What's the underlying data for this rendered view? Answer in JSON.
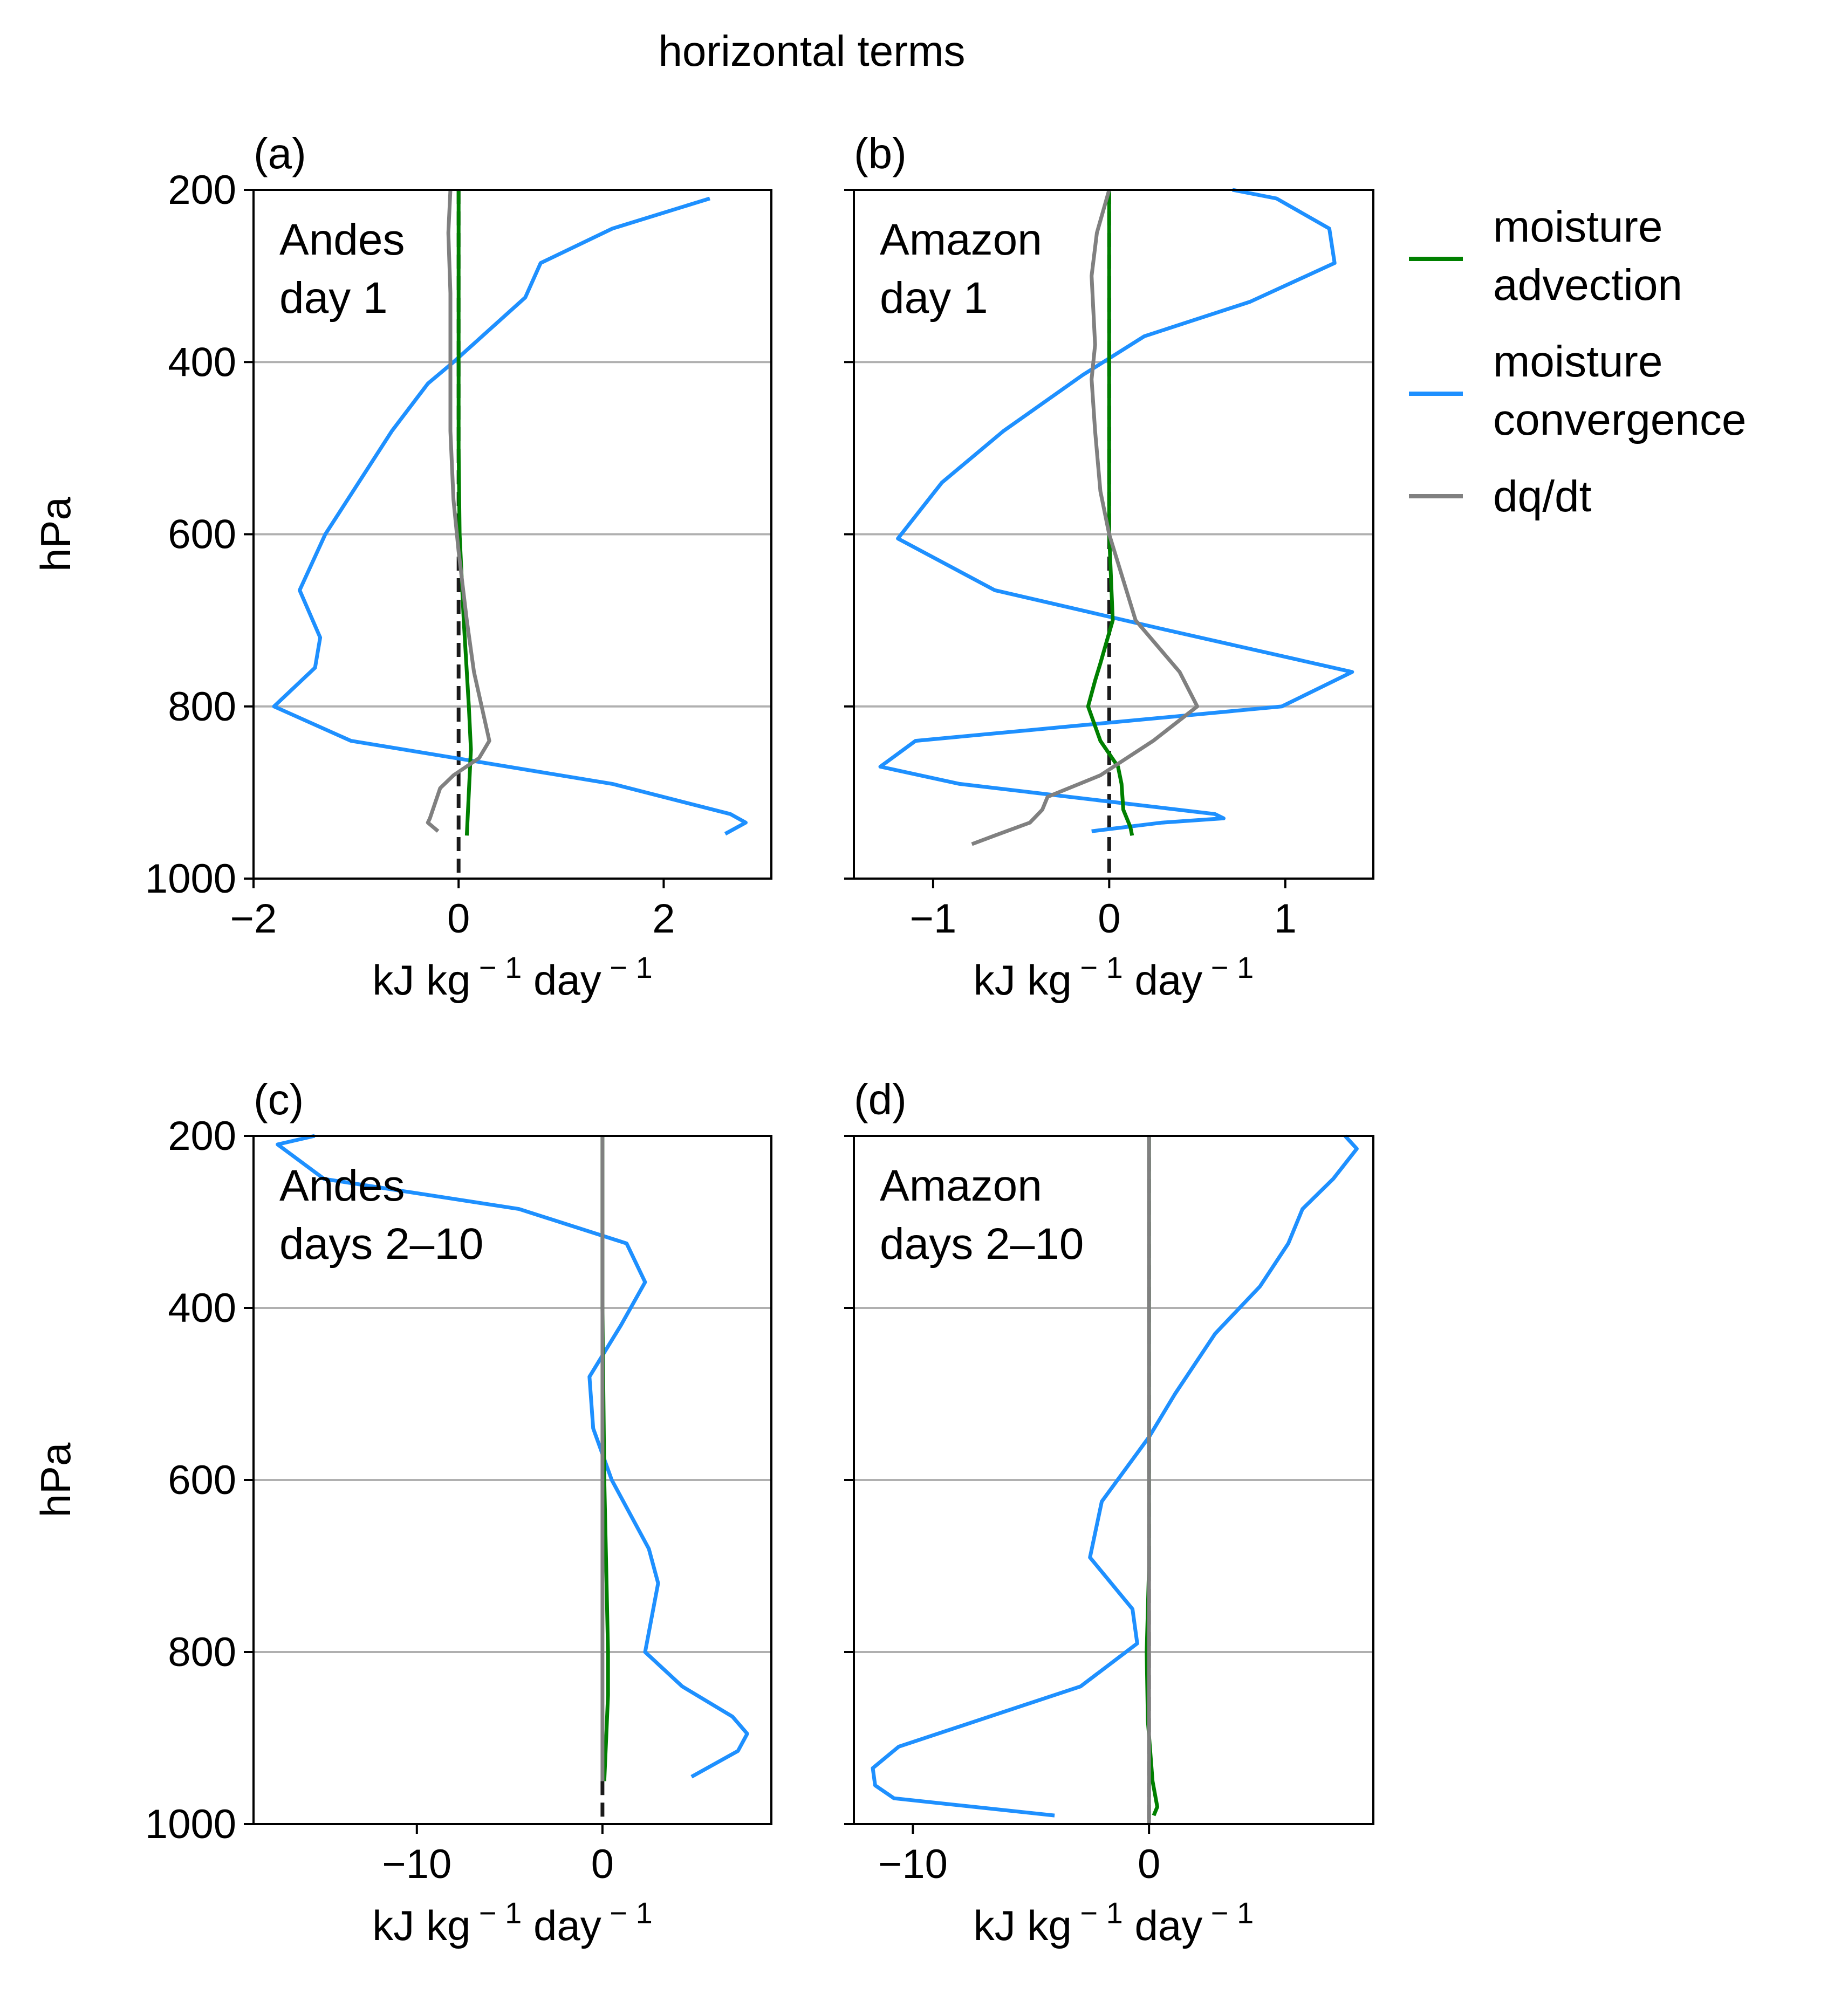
{
  "title": "horizontal terms",
  "colors": {
    "moisture_advection": "#008000",
    "moisture_convergence": "#1e90ff",
    "dq_dt": "#808080",
    "zero_line": "#1a1a1a",
    "grid": "#b0b0b0"
  },
  "legend": {
    "items": [
      {
        "key": "moisture_advection",
        "lines": [
          "moisture",
          "advection"
        ]
      },
      {
        "key": "moisture_convergence",
        "lines": [
          "moisture",
          "convergence"
        ]
      },
      {
        "key": "dq_dt",
        "lines": [
          "dq/dt"
        ]
      }
    ]
  },
  "chart_data": [
    {
      "type": "line",
      "panel": "(a)",
      "annotation": [
        "Andes",
        "day 1"
      ],
      "xlabel": "kJ kg⁻¹ day⁻¹",
      "ylabel": "hPa",
      "xlim": [
        -2.0,
        3.05
      ],
      "ylim": [
        1000,
        200
      ],
      "xticks": [
        -2,
        0,
        2
      ],
      "xtick_labels": [
        "−2",
        "0",
        "2"
      ],
      "yticks": [
        200,
        400,
        600,
        800,
        1000
      ],
      "grid_y": [
        400,
        600,
        800
      ],
      "series": [
        {
          "key": "moisture_convergence",
          "points": [
            [
              2.45,
              210
            ],
            [
              1.5,
              245
            ],
            [
              0.8,
              285
            ],
            [
              0.65,
              325
            ],
            [
              -0.05,
              400
            ],
            [
              -0.3,
              425
            ],
            [
              -0.65,
              480
            ],
            [
              -1.3,
              600
            ],
            [
              -1.55,
              665
            ],
            [
              -1.35,
              720
            ],
            [
              -1.4,
              755
            ],
            [
              -1.8,
              800
            ],
            [
              -1.05,
              840
            ],
            [
              1.5,
              890
            ],
            [
              2.65,
              925
            ],
            [
              2.8,
              935
            ],
            [
              2.6,
              948
            ]
          ]
        },
        {
          "key": "moisture_advection",
          "points": [
            [
              0.0,
              200
            ],
            [
              0.0,
              300
            ],
            [
              0.0,
              400
            ],
            [
              0.0,
              500
            ],
            [
              0.01,
              600
            ],
            [
              0.05,
              700
            ],
            [
              0.1,
              800
            ],
            [
              0.12,
              850
            ],
            [
              0.1,
              900
            ],
            [
              0.08,
              950
            ]
          ]
        },
        {
          "key": "dq_dt",
          "points": [
            [
              -0.08,
              200
            ],
            [
              -0.1,
              250
            ],
            [
              -0.08,
              320
            ],
            [
              -0.08,
              400
            ],
            [
              -0.08,
              480
            ],
            [
              -0.05,
              560
            ],
            [
              0.0,
              620
            ],
            [
              0.08,
              700
            ],
            [
              0.15,
              760
            ],
            [
              0.3,
              840
            ],
            [
              0.2,
              860
            ],
            [
              -0.05,
              880
            ],
            [
              -0.18,
              895
            ],
            [
              -0.28,
              930
            ],
            [
              -0.3,
              935
            ],
            [
              -0.2,
              945
            ]
          ]
        }
      ],
      "zero_line": [
        [
          0,
          200
        ],
        [
          0,
          1000
        ]
      ]
    },
    {
      "type": "line",
      "panel": "(b)",
      "annotation": [
        "Amazon",
        "day 1"
      ],
      "xlabel": "kJ kg⁻¹ day⁻¹",
      "ylabel": "",
      "xlim": [
        -1.45,
        1.5
      ],
      "ylim": [
        1000,
        200
      ],
      "xticks": [
        -1,
        0,
        1
      ],
      "xtick_labels": [
        "−1",
        "0",
        "1"
      ],
      "yticks": [
        200,
        400,
        600,
        800,
        1000
      ],
      "grid_y": [
        400,
        600,
        800
      ],
      "series": [
        {
          "key": "moisture_convergence",
          "points": [
            [
              0.7,
              200
            ],
            [
              0.95,
              210
            ],
            [
              1.25,
              245
            ],
            [
              1.28,
              285
            ],
            [
              0.8,
              330
            ],
            [
              0.2,
              370
            ],
            [
              -0.15,
              415
            ],
            [
              -0.6,
              480
            ],
            [
              -0.95,
              540
            ],
            [
              -1.2,
              605
            ],
            [
              -0.65,
              665
            ],
            [
              0.3,
              710
            ],
            [
              1.38,
              760
            ],
            [
              0.98,
              800
            ],
            [
              -1.1,
              840
            ],
            [
              -1.3,
              870
            ],
            [
              -0.85,
              890
            ],
            [
              0.6,
              925
            ],
            [
              0.65,
              930
            ],
            [
              0.3,
              935
            ],
            [
              -0.1,
              945
            ]
          ]
        },
        {
          "key": "moisture_advection",
          "points": [
            [
              0.0,
              200
            ],
            [
              0.0,
              300
            ],
            [
              0.0,
              400
            ],
            [
              0.0,
              500
            ],
            [
              0.0,
              600
            ],
            [
              0.01,
              650
            ],
            [
              0.02,
              700
            ],
            [
              -0.05,
              750
            ],
            [
              -0.08,
              770
            ],
            [
              -0.12,
              800
            ],
            [
              -0.05,
              840
            ],
            [
              0.05,
              870
            ],
            [
              0.07,
              890
            ],
            [
              0.08,
              920
            ],
            [
              0.12,
              940
            ],
            [
              0.13,
              950
            ]
          ]
        },
        {
          "key": "dq_dt",
          "points": [
            [
              0.0,
              200
            ],
            [
              -0.07,
              250
            ],
            [
              -0.1,
              300
            ],
            [
              -0.08,
              380
            ],
            [
              -0.1,
              420
            ],
            [
              -0.08,
              480
            ],
            [
              -0.05,
              550
            ],
            [
              0.0,
              600
            ],
            [
              0.15,
              700
            ],
            [
              0.4,
              760
            ],
            [
              0.5,
              800
            ],
            [
              0.25,
              840
            ],
            [
              -0.05,
              880
            ],
            [
              -0.35,
              905
            ],
            [
              -0.38,
              920
            ],
            [
              -0.45,
              935
            ],
            [
              -0.65,
              950
            ],
            [
              -0.78,
              960
            ]
          ]
        }
      ],
      "zero_line": [
        [
          0,
          200
        ],
        [
          0,
          1000
        ]
      ]
    },
    {
      "type": "line",
      "panel": "(c)",
      "annotation": [
        "Andes",
        "days 2–10"
      ],
      "xlabel": "kJ kg⁻¹ day⁻¹",
      "ylabel": "hPa",
      "xlim": [
        -18.8,
        9.1
      ],
      "ylim": [
        1000,
        200
      ],
      "xticks": [
        -10,
        0
      ],
      "xtick_labels": [
        "−10",
        "0"
      ],
      "yticks": [
        200,
        400,
        600,
        800,
        1000
      ],
      "grid_y": [
        400,
        600,
        800
      ],
      "series": [
        {
          "key": "moisture_convergence",
          "points": [
            [
              -15.5,
              200
            ],
            [
              -17.5,
              210
            ],
            [
              -15.0,
              250
            ],
            [
              -4.5,
              285
            ],
            [
              1.3,
              325
            ],
            [
              2.3,
              370
            ],
            [
              1.0,
              420
            ],
            [
              -0.7,
              480
            ],
            [
              -0.5,
              540
            ],
            [
              0.5,
              600
            ],
            [
              2.5,
              680
            ],
            [
              3.0,
              720
            ],
            [
              2.3,
              800
            ],
            [
              4.3,
              840
            ],
            [
              7.0,
              875
            ],
            [
              7.8,
              895
            ],
            [
              7.3,
              915
            ],
            [
              4.8,
              945
            ]
          ]
        },
        {
          "key": "moisture_advection",
          "points": [
            [
              0.0,
              200
            ],
            [
              0.0,
              400
            ],
            [
              0.1,
              600
            ],
            [
              0.2,
              700
            ],
            [
              0.3,
              800
            ],
            [
              0.3,
              850
            ],
            [
              0.2,
              900
            ],
            [
              0.1,
              950
            ]
          ]
        },
        {
          "key": "dq_dt",
          "points": [
            [
              0.0,
              200
            ],
            [
              0.0,
              400
            ],
            [
              0.0,
              600
            ],
            [
              0.0,
              800
            ],
            [
              0.0,
              950
            ]
          ]
        }
      ],
      "zero_line": [
        [
          0,
          950
        ],
        [
          0,
          1000
        ]
      ]
    },
    {
      "type": "line",
      "panel": "(d)",
      "annotation": [
        "Amazon",
        "days 2–10"
      ],
      "xlabel": "kJ kg⁻¹ day⁻¹",
      "ylabel": "",
      "xlim": [
        -12.5,
        9.5
      ],
      "ylim": [
        1000,
        200
      ],
      "xticks": [
        -10,
        0
      ],
      "xtick_labels": [
        "−10",
        "0"
      ],
      "yticks": [
        200,
        400,
        600,
        800,
        1000
      ],
      "grid_y": [
        400,
        600,
        800
      ],
      "series": [
        {
          "key": "moisture_convergence",
          "points": [
            [
              8.3,
              200
            ],
            [
              8.8,
              215
            ],
            [
              7.8,
              250
            ],
            [
              6.5,
              285
            ],
            [
              5.9,
              325
            ],
            [
              4.7,
              375
            ],
            [
              2.8,
              430
            ],
            [
              1.1,
              500
            ],
            [
              0.0,
              550
            ],
            [
              -2.0,
              625
            ],
            [
              -2.5,
              690
            ],
            [
              -0.7,
              750
            ],
            [
              -0.5,
              790
            ],
            [
              -2.9,
              840
            ],
            [
              -10.6,
              910
            ],
            [
              -11.7,
              935
            ],
            [
              -11.6,
              955
            ],
            [
              -10.8,
              970
            ],
            [
              -4.0,
              990
            ]
          ]
        },
        {
          "key": "moisture_advection",
          "points": [
            [
              0.0,
              200
            ],
            [
              0.0,
              500
            ],
            [
              0.0,
              700
            ],
            [
              -0.1,
              800
            ],
            [
              -0.05,
              880
            ],
            [
              0.15,
              950
            ],
            [
              0.35,
              980
            ],
            [
              0.2,
              990
            ]
          ]
        },
        {
          "key": "dq_dt",
          "points": [
            [
              0.0,
              200
            ],
            [
              0.0,
              400
            ],
            [
              0.0,
              600
            ],
            [
              0.0,
              800
            ],
            [
              0.0,
              1000
            ]
          ]
        }
      ],
      "zero_line": [
        [
          0,
          200
        ],
        [
          0,
          1000
        ]
      ]
    }
  ]
}
